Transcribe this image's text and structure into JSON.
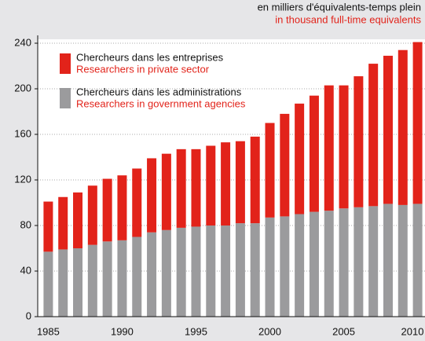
{
  "chart_data": {
    "type": "stacked_bar",
    "unit_label": "en milliers d'équivalents-temps plein",
    "unit_label_en": "in thousand full-time equivalents",
    "categories": [
      1985,
      null,
      null,
      null,
      null,
      1990,
      null,
      null,
      null,
      null,
      1995,
      null,
      null,
      null,
      null,
      2000,
      null,
      null,
      null,
      null,
      2005,
      null,
      null,
      null,
      null,
      2010
    ],
    "series": [
      {
        "name": "Chercheurs dans les administrations",
        "name_en": "Researchers in government agencies",
        "color": "#9b9b9d",
        "values": [
          57,
          59,
          60,
          63,
          66,
          67,
          70,
          74,
          76,
          78,
          79,
          80,
          80,
          82,
          82,
          87,
          88,
          90,
          92,
          93,
          95,
          96,
          97,
          99,
          98,
          99
        ]
      },
      {
        "name": "Chercheurs dans les entreprises",
        "name_en": "Researchers in private sector",
        "color": "#e2231a",
        "values": [
          44,
          46,
          49,
          52,
          55,
          57,
          60,
          65,
          67,
          69,
          68,
          70,
          73,
          72,
          76,
          83,
          90,
          97,
          102,
          110,
          108,
          115,
          125,
          130,
          136,
          142
        ]
      }
    ],
    "ylim": [
      0,
      240
    ],
    "yticks": [
      0,
      40,
      80,
      120,
      160,
      200,
      240
    ],
    "grid": true
  }
}
